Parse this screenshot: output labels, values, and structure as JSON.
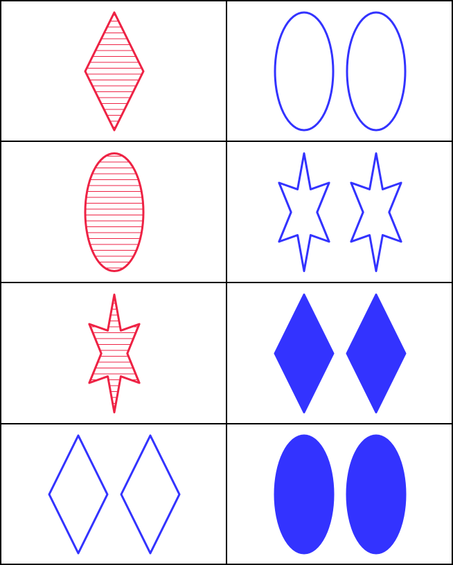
{
  "colors": {
    "red": "#ee2244",
    "blue": "#3333ff",
    "grid": "#000000",
    "background": "#ffffff"
  },
  "cards": [
    {
      "row": 1,
      "col": 1,
      "count": 1,
      "shape": "diamond",
      "color": "red",
      "shading": "striped"
    },
    {
      "row": 1,
      "col": 2,
      "count": 2,
      "shape": "oval",
      "color": "blue",
      "shading": "open"
    },
    {
      "row": 2,
      "col": 1,
      "count": 1,
      "shape": "oval",
      "color": "red",
      "shading": "striped"
    },
    {
      "row": 2,
      "col": 2,
      "count": 2,
      "shape": "star",
      "color": "blue",
      "shading": "open"
    },
    {
      "row": 3,
      "col": 1,
      "count": 1,
      "shape": "star",
      "color": "red",
      "shading": "striped"
    },
    {
      "row": 3,
      "col": 2,
      "count": 2,
      "shape": "diamond",
      "color": "blue",
      "shading": "solid"
    },
    {
      "row": 4,
      "col": 1,
      "count": 2,
      "shape": "diamond",
      "color": "blue",
      "shading": "open"
    },
    {
      "row": 4,
      "col": 2,
      "count": 2,
      "shape": "oval",
      "color": "blue",
      "shading": "solid"
    }
  ]
}
